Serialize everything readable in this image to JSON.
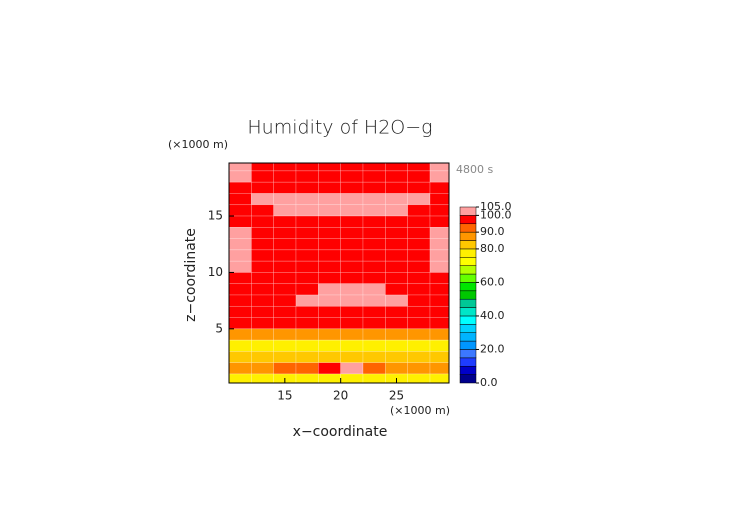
{
  "chart_data": {
    "type": "contour",
    "title": "Humidity of H2O−g",
    "x_label": "x−coordinate",
    "y_label": "z−coordinate",
    "x_unit": "(×1000 m)",
    "y_unit": "(×1000 m)",
    "annotation": "4800 s",
    "xlim": [
      10,
      29.7
    ],
    "ylim": [
      0.2,
      19.7
    ],
    "xticks": [
      15,
      20,
      25
    ],
    "yticks": [
      5,
      10,
      15
    ],
    "x": [
      11,
      13,
      15,
      17,
      19,
      21,
      23,
      25,
      27,
      29
    ],
    "y": [
      19.5,
      18.5,
      17.5,
      16.5,
      15.5,
      14.5,
      13.5,
      12.5,
      11.5,
      10.5,
      9.5,
      8.5,
      7.5,
      6.5,
      5.5,
      4.5,
      3.5,
      2.5,
      1.5,
      0.5
    ],
    "z": [
      [
        102,
        97,
        97,
        97,
        97,
        97,
        97,
        97,
        97,
        102
      ],
      [
        102,
        97,
        97,
        97,
        97,
        97,
        97,
        97,
        97,
        102
      ],
      [
        97,
        97,
        97,
        97,
        97,
        97,
        97,
        97,
        97,
        97
      ],
      [
        97,
        102,
        102,
        102,
        102,
        102,
        102,
        102,
        102,
        97
      ],
      [
        97,
        97,
        102,
        102,
        102,
        102,
        102,
        102,
        97,
        97
      ],
      [
        97,
        97,
        97,
        97,
        97,
        97,
        97,
        97,
        97,
        97
      ],
      [
        102,
        97,
        97,
        97,
        97,
        97,
        97,
        97,
        97,
        102
      ],
      [
        102,
        97,
        97,
        97,
        97,
        97,
        97,
        97,
        97,
        102
      ],
      [
        102,
        97,
        97,
        97,
        97,
        97,
        97,
        97,
        97,
        102
      ],
      [
        102,
        97,
        97,
        97,
        97,
        97,
        97,
        97,
        97,
        102
      ],
      [
        97,
        97,
        97,
        97,
        97,
        97,
        97,
        97,
        97,
        97
      ],
      [
        97,
        97,
        97,
        97,
        102,
        102,
        102,
        97,
        97,
        97
      ],
      [
        97,
        97,
        97,
        102,
        102,
        102,
        102,
        102,
        97,
        97
      ],
      [
        97,
        97,
        97,
        97,
        97,
        97,
        97,
        97,
        97,
        97
      ],
      [
        97,
        97,
        97,
        97,
        97,
        97,
        97,
        97,
        97,
        97
      ],
      [
        87,
        87,
        87,
        87,
        87,
        87,
        87,
        87,
        87,
        87
      ],
      [
        77,
        77,
        77,
        77,
        77,
        77,
        77,
        77,
        77,
        77
      ],
      [
        82,
        82,
        82,
        82,
        82,
        82,
        82,
        82,
        82,
        82
      ],
      [
        87,
        87,
        92,
        92,
        97,
        102,
        92,
        87,
        87,
        87
      ],
      [
        77,
        77,
        77,
        77,
        77,
        77,
        77,
        77,
        77,
        77
      ]
    ],
    "levels": [
      0,
      5,
      10,
      15,
      20,
      25,
      30,
      35,
      40,
      45,
      50,
      55,
      60,
      65,
      70,
      75,
      80,
      85,
      90,
      95,
      100,
      105
    ],
    "colors": [
      "#00008c",
      "#0000c8",
      "#1e3cff",
      "#3c78ff",
      "#0096ff",
      "#00b4ff",
      "#00d2ff",
      "#00ffff",
      "#00e6c8",
      "#00c896",
      "#00c800",
      "#00e600",
      "#64ff00",
      "#b4ff00",
      "#ffff00",
      "#fff000",
      "#ffc800",
      "#ff9600",
      "#ff6400",
      "#ff0000",
      "#ffa0a0"
    ],
    "cbar_ticks": [
      {
        "value": 0,
        "label": "0.0"
      },
      {
        "value": 20,
        "label": "20.0"
      },
      {
        "value": 40,
        "label": "40.0"
      },
      {
        "value": 60,
        "label": "60.0"
      },
      {
        "value": 80,
        "label": "80.0"
      },
      {
        "value": 90,
        "label": "90.0"
      },
      {
        "value": 100,
        "label": "100.0"
      },
      {
        "value": 105,
        "label": "105.0"
      }
    ]
  }
}
